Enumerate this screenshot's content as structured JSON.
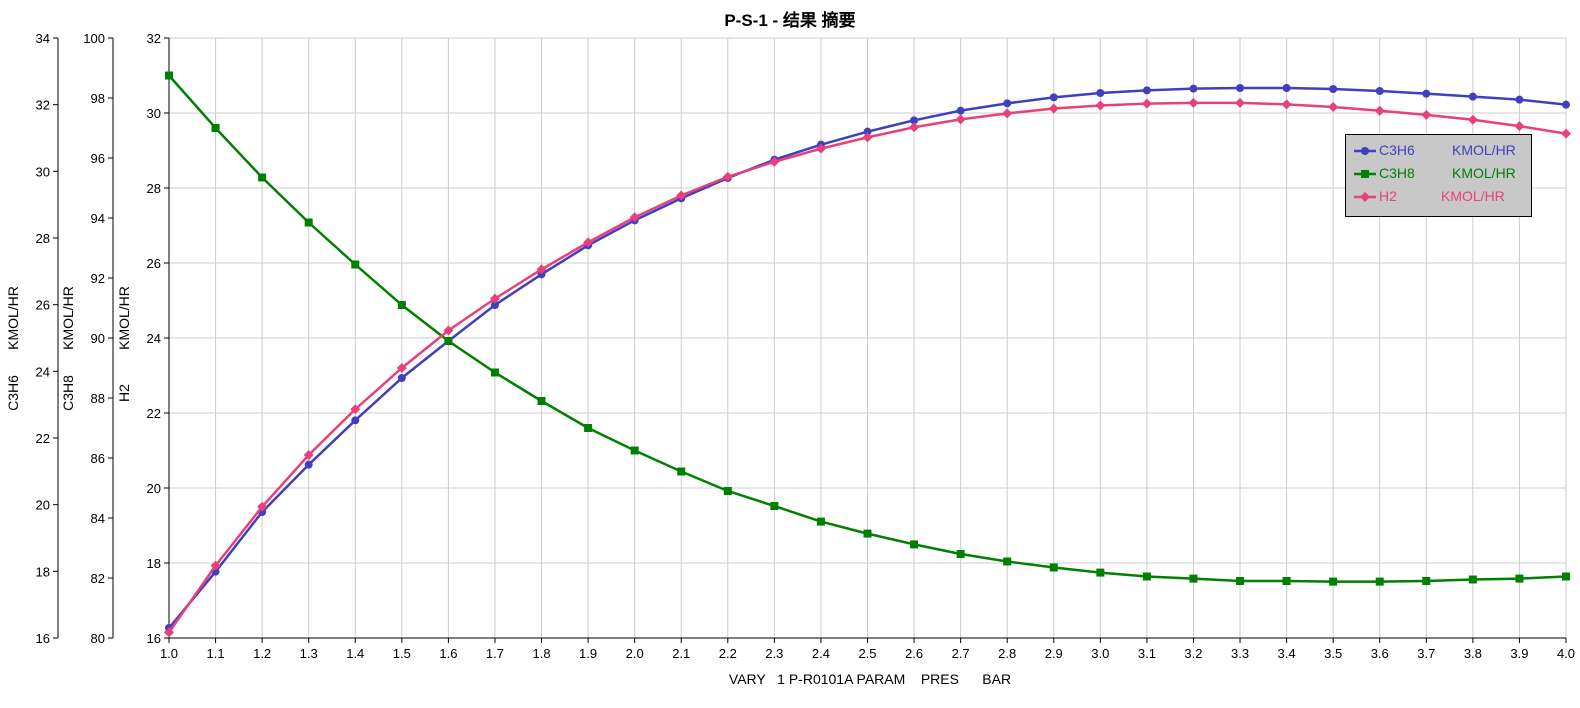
{
  "chart_data": {
    "type": "line",
    "title": "P-S-1 - 结果 摘要",
    "xlabel": "VARY   1 P-R0101A PARAM    PRES      BAR",
    "x": [
      1.0,
      1.1,
      1.2,
      1.3,
      1.4,
      1.5,
      1.6,
      1.7,
      1.8,
      1.9,
      2.0,
      2.1,
      2.2,
      2.3,
      2.4,
      2.5,
      2.6,
      2.7,
      2.8,
      2.9,
      3.0,
      3.1,
      3.2,
      3.3,
      3.4,
      3.5,
      3.6,
      3.7,
      3.8,
      3.9,
      4.0
    ],
    "x_ticks": [
      "1.0",
      "1.1",
      "1.2",
      "1.3",
      "1.4",
      "1.5",
      "1.6",
      "1.7",
      "1.8",
      "1.9",
      "2.0",
      "2.1",
      "2.2",
      "2.3",
      "2.4",
      "2.5",
      "2.6",
      "2.7",
      "2.8",
      "2.9",
      "3.0",
      "3.1",
      "3.2",
      "3.3",
      "3.4",
      "3.5",
      "3.6",
      "3.7",
      "3.8",
      "3.9",
      "4.0"
    ],
    "xlim": [
      1.0,
      4.0
    ],
    "grid": true,
    "legend_position": "top-right",
    "axes": [
      {
        "id": "c3h6",
        "label_top": "KMOL/HR",
        "label_bottom": "C3H6",
        "ylim": [
          16,
          34
        ],
        "ticks": [
          "16",
          "18",
          "20",
          "22",
          "24",
          "26",
          "28",
          "30",
          "32",
          "34"
        ]
      },
      {
        "id": "c3h8",
        "label_top": "KMOL/HR",
        "label_bottom": "C3H8",
        "ylim": [
          80,
          100
        ],
        "ticks": [
          "80",
          "82",
          "84",
          "86",
          "88",
          "90",
          "92",
          "94",
          "96",
          "98",
          "100"
        ]
      },
      {
        "id": "h2",
        "label_top": "KMOL/HR",
        "label_bottom": "H2",
        "ylim": [
          16,
          32
        ],
        "ticks": [
          "16",
          "18",
          "20",
          "22",
          "24",
          "26",
          "28",
          "30",
          "32"
        ]
      }
    ],
    "series": [
      {
        "name": "C3H6",
        "unit": "KMOL/HR",
        "axis": "c3h6",
        "color": "#3f3fbf",
        "marker": "circle",
        "values": [
          16.3,
          17.99,
          19.78,
          21.2,
          22.53,
          23.8,
          24.91,
          25.99,
          26.91,
          27.78,
          28.53,
          29.19,
          29.8,
          30.35,
          30.8,
          31.19,
          31.53,
          31.82,
          32.04,
          32.22,
          32.35,
          32.43,
          32.48,
          32.5,
          32.5,
          32.47,
          32.41,
          32.33,
          32.24,
          32.15,
          32.0
        ]
      },
      {
        "name": "C3H8",
        "unit": "KMOL/HR",
        "axis": "c3h8",
        "color": "#008000",
        "marker": "square",
        "values": [
          98.75,
          97.0,
          95.35,
          93.85,
          92.45,
          91.1,
          89.9,
          88.85,
          87.9,
          87.0,
          86.25,
          85.55,
          84.9,
          84.4,
          83.88,
          83.48,
          83.12,
          82.8,
          82.55,
          82.35,
          82.18,
          82.05,
          81.98,
          81.9,
          81.9,
          81.88,
          81.88,
          81.9,
          81.95,
          81.98,
          82.05
        ]
      },
      {
        "name": "H2",
        "unit": "KMOL/HR",
        "axis": "h2",
        "color": "#e8407a",
        "marker": "diamond",
        "values": [
          16.15,
          17.93,
          19.5,
          20.88,
          22.1,
          23.2,
          24.2,
          25.05,
          25.83,
          26.55,
          27.22,
          27.8,
          28.3,
          28.7,
          29.05,
          29.35,
          29.62,
          29.83,
          29.99,
          30.12,
          30.2,
          30.25,
          30.27,
          30.27,
          30.23,
          30.16,
          30.06,
          29.95,
          29.82,
          29.65,
          29.45
        ]
      }
    ]
  }
}
